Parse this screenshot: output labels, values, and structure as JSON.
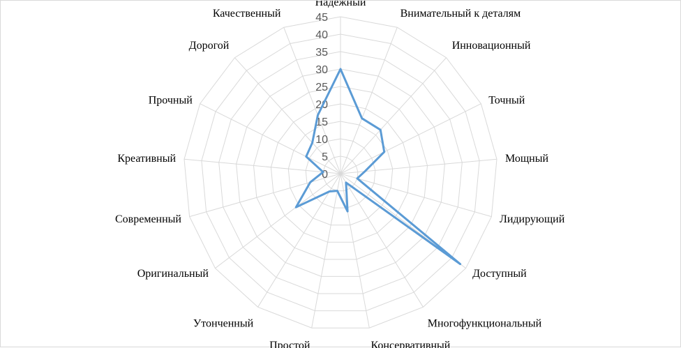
{
  "chart_data": {
    "type": "radar",
    "categories": [
      "Надежный",
      "Внимательный к деталям",
      "Инновационный",
      "Точный",
      "Мощный",
      "Лидирующий",
      "Доступный",
      "Многофункциональный",
      "Консервативный",
      "Простой",
      "Утонченный",
      "Оригинальный",
      "Современный",
      "Креативный",
      "Прочный",
      "Дорогой",
      "Качественный"
    ],
    "series": [
      {
        "values": [
          30,
          17,
          17,
          14,
          7,
          5,
          43,
          3,
          11,
          5,
          6,
          16,
          9,
          5,
          11,
          12,
          18
        ],
        "color": "#5b9bd5"
      }
    ],
    "ticks": [
      "0",
      "5",
      "10",
      "15",
      "20",
      "25",
      "30",
      "35",
      "40",
      "45"
    ],
    "rlim": [
      0,
      45
    ],
    "grid": true,
    "legend": "none"
  }
}
